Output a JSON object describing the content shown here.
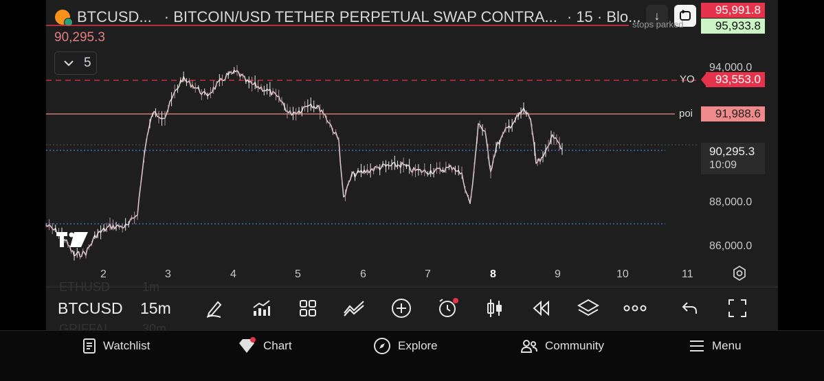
{
  "header": {
    "symbol": "BTCUSD...",
    "description": "· BITCOIN/USD TETHER PERPETUAL SWAP CONTRA...",
    "interval_suffix": "· 15 · Blo..."
  },
  "chart": {
    "last_price_label": "90,295.3",
    "legend_count": "5",
    "stops_text": "stops parked",
    "price_tags": {
      "top_red": "95,991.8",
      "top_green": "95,933.8",
      "yo_label": "YO",
      "yo_value": "93,553.0",
      "poi_label": "poi",
      "poi_value": "91,988.6",
      "current_value": "90,295.3",
      "countdown": "10:09"
    },
    "y_ticks": [
      "94,000.0",
      "88,000.0",
      "86,000.0"
    ],
    "x_ticks": [
      "2",
      "3",
      "4",
      "5",
      "6",
      "7",
      "8",
      "9",
      "10",
      "11"
    ],
    "watermark": "TV",
    "colors": {
      "red": "#e5334b",
      "salmon": "#f08a8a",
      "blue": "#4a7fd9",
      "green_tag": "#ccf5c6"
    }
  },
  "toolbar": {
    "symbol": "BTCUSD",
    "interval": "15m",
    "ghost_above": [
      "ETHUSD",
      "1m"
    ],
    "ghost_below": [
      "GRIFFAI",
      "30m"
    ],
    "tools": [
      "pencil-icon",
      "bars-icon",
      "grid-icon",
      "indicators-icon",
      "plus-circle-icon",
      "alarm-icon",
      "candles-icon",
      "rewind-icon",
      "layers-icon",
      "more-icon",
      "undo-icon",
      "fullscreen-icon"
    ]
  },
  "nav": {
    "watchlist": "Watchlist",
    "chart": "Chart",
    "explore": "Explore",
    "community": "Community",
    "menu": "Menu"
  }
}
